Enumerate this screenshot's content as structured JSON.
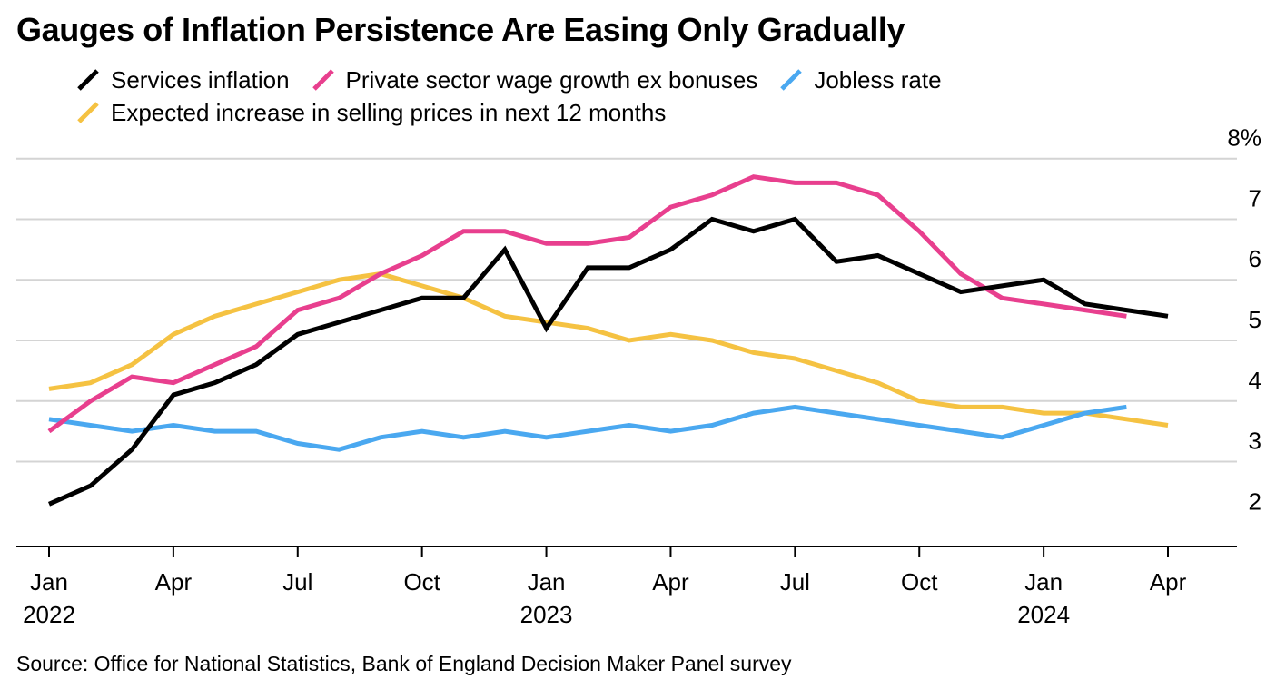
{
  "chart_data": {
    "type": "line",
    "title": "Gauges of Inflation Persistence Are Easing Only Gradually",
    "source": "Source: Office for National Statistics, Bank of England Decision Maker Panel survey",
    "x": [
      "2022-01",
      "2022-02",
      "2022-03",
      "2022-04",
      "2022-05",
      "2022-06",
      "2022-07",
      "2022-08",
      "2022-09",
      "2022-10",
      "2022-11",
      "2022-12",
      "2023-01",
      "2023-02",
      "2023-03",
      "2023-04",
      "2023-05",
      "2023-06",
      "2023-07",
      "2023-08",
      "2023-09",
      "2023-10",
      "2023-11",
      "2023-12",
      "2024-01",
      "2024-02",
      "2024-03",
      "2024-04"
    ],
    "x_ticks": [
      {
        "month": "Jan",
        "year": "2022",
        "x": "2022-01"
      },
      {
        "month": "Apr",
        "year": "",
        "x": "2022-04"
      },
      {
        "month": "Jul",
        "year": "",
        "x": "2022-07"
      },
      {
        "month": "Oct",
        "year": "",
        "x": "2022-10"
      },
      {
        "month": "Jan",
        "year": "2023",
        "x": "2023-01"
      },
      {
        "month": "Apr",
        "year": "",
        "x": "2023-04"
      },
      {
        "month": "Jul",
        "year": "",
        "x": "2023-07"
      },
      {
        "month": "Oct",
        "year": "",
        "x": "2023-10"
      },
      {
        "month": "Jan",
        "year": "2024",
        "x": "2024-01"
      },
      {
        "month": "Apr",
        "year": "",
        "x": "2024-04"
      }
    ],
    "y_ticks": [
      "8%",
      "7",
      "6",
      "5",
      "4",
      "3",
      "2"
    ],
    "y_tick_values": [
      8,
      7,
      6,
      5,
      4,
      3,
      2
    ],
    "ylim": [
      1.6,
      8.4
    ],
    "grid": true,
    "legend_position": "top-left",
    "series": [
      {
        "name": "Services inflation",
        "color": "#000000",
        "values": [
          2.3,
          2.6,
          3.2,
          4.1,
          4.3,
          4.6,
          5.1,
          5.3,
          5.5,
          5.7,
          5.7,
          6.5,
          5.2,
          6.2,
          6.2,
          6.5,
          7.0,
          6.8,
          7.0,
          6.3,
          6.4,
          6.1,
          5.8,
          5.9,
          6.0,
          5.6,
          5.5,
          5.4
        ]
      },
      {
        "name": "Private sector wage growth ex bonuses",
        "color": "#e83f8e",
        "values": [
          3.5,
          4.0,
          4.4,
          4.3,
          4.6,
          4.9,
          5.5,
          5.7,
          6.1,
          6.4,
          6.8,
          6.8,
          6.6,
          6.6,
          6.7,
          7.2,
          7.4,
          7.7,
          7.6,
          7.6,
          7.4,
          6.8,
          6.1,
          5.7,
          5.6,
          5.5,
          5.4,
          null
        ]
      },
      {
        "name": "Jobless rate",
        "color": "#4aa8f0",
        "values": [
          3.7,
          3.6,
          3.5,
          3.6,
          3.5,
          3.5,
          3.3,
          3.2,
          3.4,
          3.5,
          3.4,
          3.5,
          3.4,
          3.5,
          3.6,
          3.5,
          3.6,
          3.8,
          3.9,
          3.8,
          3.7,
          3.6,
          3.5,
          3.4,
          3.6,
          3.8,
          3.9,
          null
        ]
      },
      {
        "name": "Expected increase in selling prices in next 12 months",
        "color": "#f5c242",
        "values": [
          4.2,
          4.3,
          4.6,
          5.1,
          5.4,
          5.6,
          5.8,
          6.0,
          6.1,
          5.9,
          5.7,
          5.4,
          5.3,
          5.2,
          5.0,
          5.1,
          5.0,
          4.8,
          4.7,
          4.5,
          4.3,
          4.0,
          3.9,
          3.9,
          3.8,
          3.8,
          3.7,
          3.6
        ]
      }
    ]
  }
}
